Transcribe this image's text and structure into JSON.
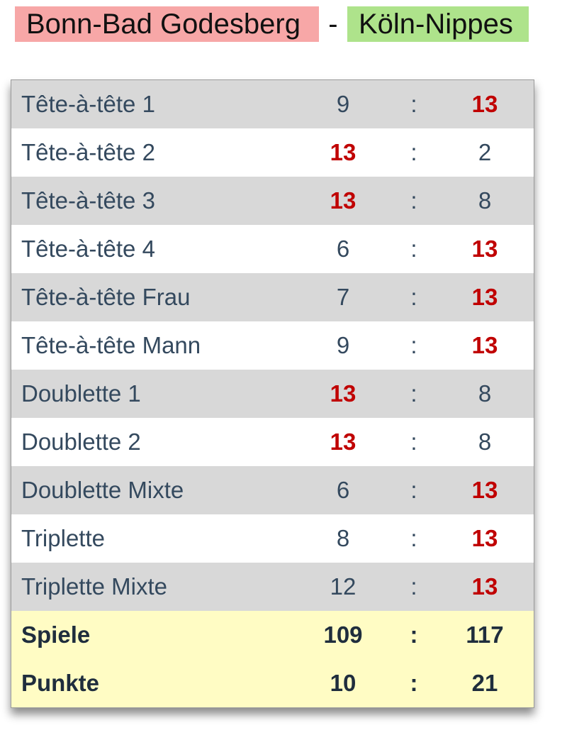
{
  "header": {
    "home_team": "Bonn-Bad Godesberg",
    "separator": "-",
    "away_team": "Köln-Nippes"
  },
  "colors": {
    "home_team_bg": "#f7a7a7",
    "away_team_bg": "#aee38b",
    "row_shade": "#d8d8d8",
    "total_bg": "#fffcc4",
    "win_color": "#c00000"
  },
  "colon": ":",
  "games": [
    {
      "name": "Tête-à-tête 1",
      "home": "9",
      "away": "13",
      "winner": "away"
    },
    {
      "name": "Tête-à-tête 2",
      "home": "13",
      "away": "2",
      "winner": "home"
    },
    {
      "name": "Tête-à-tête 3",
      "home": "13",
      "away": "8",
      "winner": "home"
    },
    {
      "name": "Tête-à-tête 4",
      "home": "6",
      "away": "13",
      "winner": "away"
    },
    {
      "name": "Tête-à-tête Frau",
      "home": "7",
      "away": "13",
      "winner": "away"
    },
    {
      "name": "Tête-à-tête Mann",
      "home": "9",
      "away": "13",
      "winner": "away"
    },
    {
      "name": "Doublette 1",
      "home": "13",
      "away": "8",
      "winner": "home"
    },
    {
      "name": "Doublette 2",
      "home": "13",
      "away": "8",
      "winner": "home"
    },
    {
      "name": "Doublette Mixte",
      "home": "6",
      "away": "13",
      "winner": "away"
    },
    {
      "name": "Triplette",
      "home": "8",
      "away": "13",
      "winner": "away"
    },
    {
      "name": "Triplette Mixte",
      "home": "12",
      "away": "13",
      "winner": "away"
    }
  ],
  "totals": [
    {
      "name": "Spiele",
      "home": "109",
      "away": "117"
    },
    {
      "name": "Punkte",
      "home": "10",
      "away": "21"
    }
  ]
}
